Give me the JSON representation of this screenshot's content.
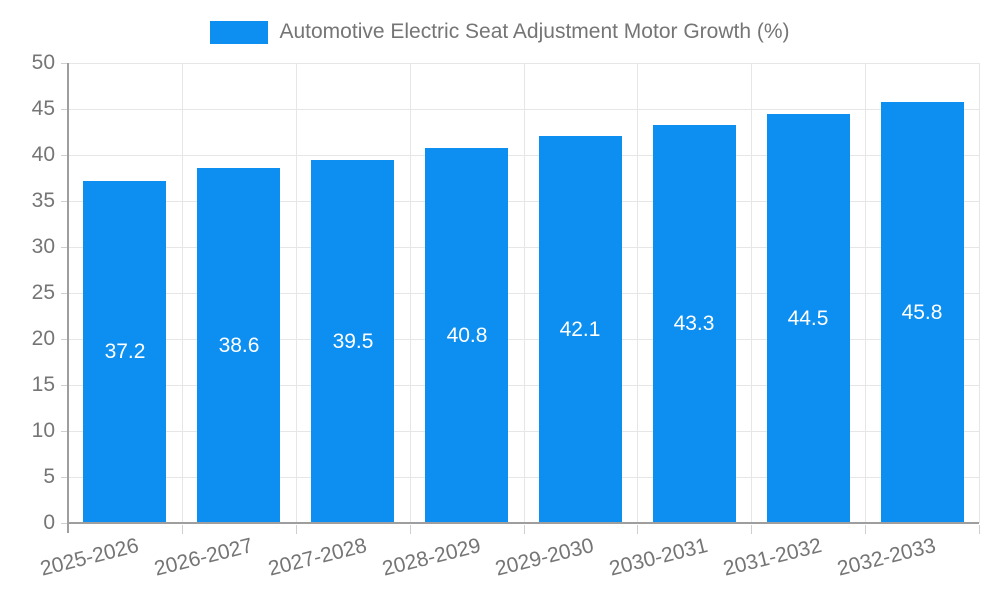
{
  "legend": {
    "label": "Automotive Electric Seat Adjustment Motor Growth (%)"
  },
  "colors": {
    "bar": "#0D8FF2",
    "axis_text": "#757575",
    "value_text": "#ffffff",
    "gridline": "#e6e6e6",
    "axis_line": "#9e9e9e",
    "background": "#ffffff"
  },
  "chart_data": {
    "type": "bar",
    "title": "Automotive Electric Seat Adjustment Motor Growth (%)",
    "categories": [
      "2025-2026",
      "2026-2027",
      "2027-2028",
      "2028-2029",
      "2029-2030",
      "2030-2031",
      "2031-2032",
      "2032-2033"
    ],
    "values": [
      37.2,
      38.6,
      39.5,
      40.8,
      42.1,
      43.3,
      44.5,
      45.8
    ],
    "value_labels": [
      "37.2",
      "38.6",
      "39.5",
      "40.8",
      "42.1",
      "43.3",
      "44.5",
      "45.8"
    ],
    "xlabel": "",
    "ylabel": "",
    "ylim": [
      0,
      50
    ],
    "ytick_step": 5,
    "ytick_labels": [
      "0",
      "5",
      "10",
      "15",
      "20",
      "25",
      "30",
      "35",
      "40",
      "45",
      "50"
    ],
    "grid": true,
    "legend_position": "top",
    "bar_color": "#0D8FF2",
    "value_label_position": "middle-of-bar",
    "x_label_rotation_deg": -14
  }
}
